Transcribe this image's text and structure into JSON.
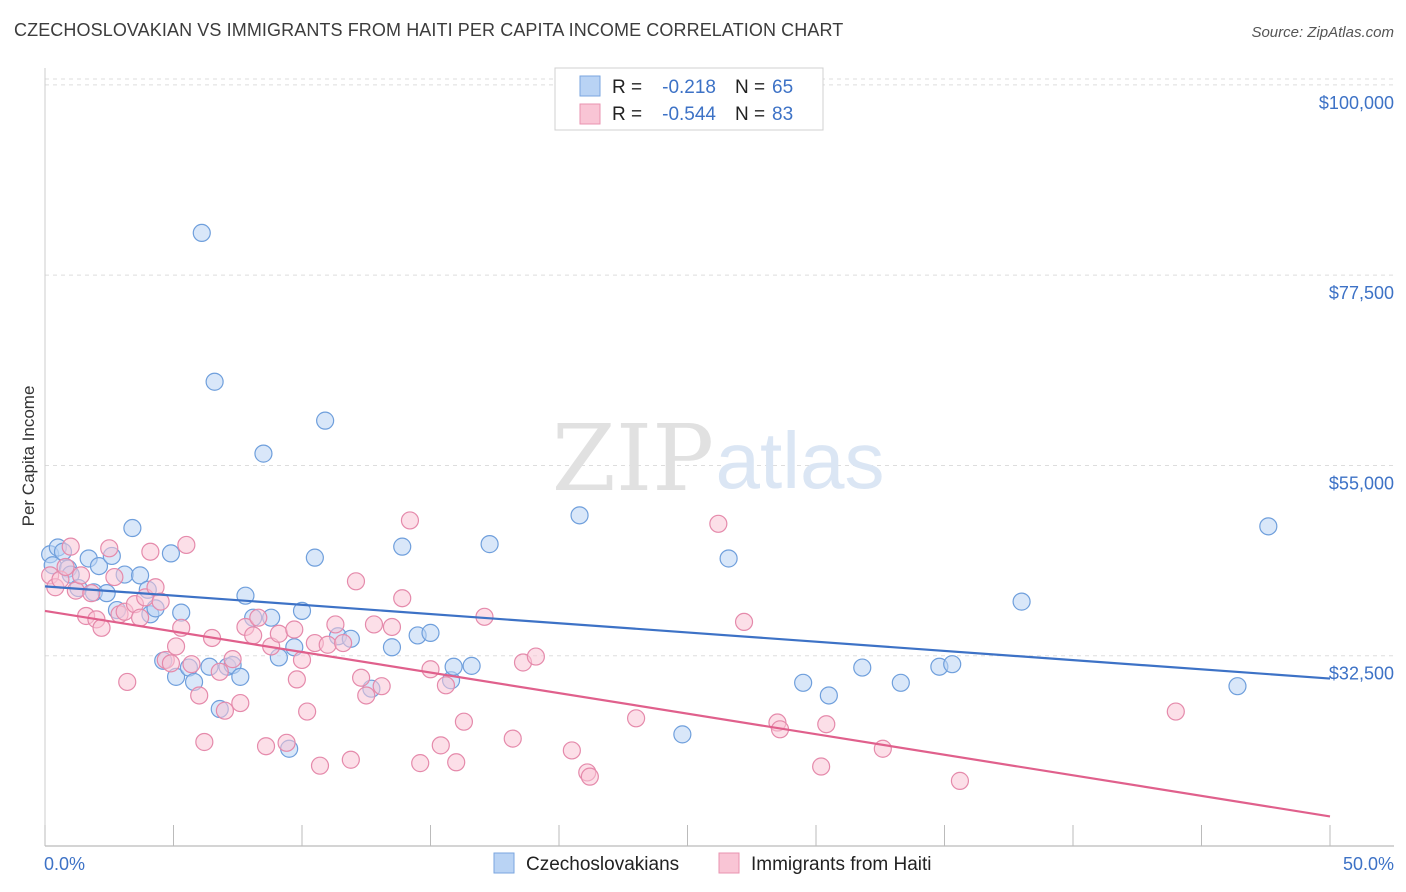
{
  "title": "CZECHOSLOVAKIAN VS IMMIGRANTS FROM HAITI PER CAPITA INCOME CORRELATION CHART",
  "source": "Source: ZipAtlas.com",
  "watermark": {
    "zip": "ZIP",
    "atlas": "atlas"
  },
  "colors": {
    "blue": "#3d72c6",
    "pink": "#e0608c",
    "blue_fill": "#b9d3f4",
    "pink_fill": "#f9c5d5"
  },
  "legend": {
    "r_label": "R =",
    "n_label": "N =",
    "rows": [
      {
        "r": "-0.218",
        "n": "65"
      },
      {
        "r": "-0.544",
        "n": "83"
      }
    ]
  },
  "chart_data": {
    "type": "scatter",
    "title": "CZECHOSLOVAKIAN VS IMMIGRANTS FROM HAITI PER CAPITA INCOME CORRELATION CHART",
    "xlabel": "",
    "ylabel": "Per Capita Income",
    "xlim": [
      0,
      50
    ],
    "ylim": [
      10000,
      102000
    ],
    "x_tick_labels": [
      "0.0%",
      "50.0%"
    ],
    "y_ticks": [
      32500,
      55000,
      77500,
      100000
    ],
    "y_tick_labels": [
      "$32,500",
      "$55,000",
      "$77,500",
      "$100,000"
    ],
    "grid": "horizontal dashed",
    "legend_position": "top-center",
    "series": [
      {
        "name": "Czechoslovakians",
        "color": "#3d72c6",
        "trend": {
          "x": [
            0,
            50
          ],
          "y": [
            40700,
            29800
          ]
        },
        "points": [
          [
            0.2,
            44500
          ],
          [
            0.3,
            43200
          ],
          [
            0.5,
            45300
          ],
          [
            0.7,
            44800
          ],
          [
            0.9,
            42800
          ],
          [
            1.0,
            42100
          ],
          [
            1.3,
            40500
          ],
          [
            1.7,
            44000
          ],
          [
            1.9,
            40000
          ],
          [
            2.1,
            43100
          ],
          [
            2.4,
            39900
          ],
          [
            2.6,
            44300
          ],
          [
            2.8,
            37900
          ],
          [
            3.1,
            42100
          ],
          [
            3.4,
            47600
          ],
          [
            3.7,
            42000
          ],
          [
            4.0,
            40300
          ],
          [
            4.1,
            37400
          ],
          [
            4.3,
            38100
          ],
          [
            4.6,
            31900
          ],
          [
            4.9,
            44600
          ],
          [
            5.1,
            30000
          ],
          [
            5.3,
            37600
          ],
          [
            5.6,
            31100
          ],
          [
            5.8,
            29400
          ],
          [
            6.1,
            82500
          ],
          [
            6.4,
            31200
          ],
          [
            6.6,
            64900
          ],
          [
            6.8,
            26200
          ],
          [
            7.1,
            31200
          ],
          [
            7.3,
            31400
          ],
          [
            7.6,
            30000
          ],
          [
            7.8,
            39600
          ],
          [
            8.1,
            37000
          ],
          [
            8.5,
            56400
          ],
          [
            8.8,
            37000
          ],
          [
            9.1,
            32300
          ],
          [
            9.5,
            21500
          ],
          [
            9.7,
            33500
          ],
          [
            10.0,
            37800
          ],
          [
            10.5,
            44100
          ],
          [
            10.9,
            60300
          ],
          [
            11.4,
            34800
          ],
          [
            11.9,
            34500
          ],
          [
            12.7,
            28600
          ],
          [
            13.5,
            33500
          ],
          [
            13.9,
            45400
          ],
          [
            14.5,
            34900
          ],
          [
            15.0,
            35200
          ],
          [
            15.8,
            29600
          ],
          [
            15.9,
            31200
          ],
          [
            16.6,
            31300
          ],
          [
            17.3,
            45700
          ],
          [
            20.8,
            49100
          ],
          [
            24.8,
            23200
          ],
          [
            26.6,
            44000
          ],
          [
            29.5,
            29300
          ],
          [
            30.5,
            27800
          ],
          [
            31.8,
            31100
          ],
          [
            33.3,
            29300
          ],
          [
            34.8,
            31200
          ],
          [
            35.3,
            31500
          ],
          [
            38.0,
            38900
          ],
          [
            46.4,
            28900
          ],
          [
            47.6,
            47800
          ]
        ]
      },
      {
        "name": "Immigrants from Haiti",
        "color": "#e0608c",
        "trend": {
          "x": [
            0,
            50
          ],
          "y": [
            37800,
            13500
          ]
        },
        "points": [
          [
            0.2,
            42000
          ],
          [
            0.4,
            40600
          ],
          [
            0.6,
            41500
          ],
          [
            0.8,
            43000
          ],
          [
            1.0,
            45400
          ],
          [
            1.2,
            40200
          ],
          [
            1.4,
            42000
          ],
          [
            1.6,
            37200
          ],
          [
            1.8,
            39900
          ],
          [
            2.0,
            36800
          ],
          [
            2.2,
            35800
          ],
          [
            2.5,
            45200
          ],
          [
            2.7,
            41800
          ],
          [
            2.9,
            37400
          ],
          [
            3.1,
            37700
          ],
          [
            3.2,
            29400
          ],
          [
            3.5,
            38600
          ],
          [
            3.7,
            37000
          ],
          [
            3.9,
            39400
          ],
          [
            4.1,
            44800
          ],
          [
            4.3,
            40600
          ],
          [
            4.5,
            38900
          ],
          [
            4.7,
            32000
          ],
          [
            4.9,
            31600
          ],
          [
            5.1,
            33600
          ],
          [
            5.3,
            35800
          ],
          [
            5.5,
            45600
          ],
          [
            5.7,
            31500
          ],
          [
            6.0,
            27800
          ],
          [
            6.2,
            22300
          ],
          [
            6.5,
            34600
          ],
          [
            6.8,
            30600
          ],
          [
            7.0,
            26000
          ],
          [
            7.3,
            32100
          ],
          [
            7.6,
            26900
          ],
          [
            7.8,
            35900
          ],
          [
            8.1,
            34900
          ],
          [
            8.3,
            37000
          ],
          [
            8.6,
            21800
          ],
          [
            8.8,
            33600
          ],
          [
            9.1,
            35100
          ],
          [
            9.4,
            22200
          ],
          [
            9.7,
            35600
          ],
          [
            9.8,
            29700
          ],
          [
            10.0,
            32000
          ],
          [
            10.2,
            25900
          ],
          [
            10.5,
            34000
          ],
          [
            10.7,
            19500
          ],
          [
            11.0,
            33800
          ],
          [
            11.3,
            36200
          ],
          [
            11.6,
            34000
          ],
          [
            11.9,
            20200
          ],
          [
            12.1,
            41300
          ],
          [
            12.3,
            29900
          ],
          [
            12.5,
            27800
          ],
          [
            12.8,
            36200
          ],
          [
            13.1,
            28900
          ],
          [
            13.5,
            35900
          ],
          [
            13.9,
            39300
          ],
          [
            14.2,
            48500
          ],
          [
            14.6,
            19800
          ],
          [
            15.0,
            30900
          ],
          [
            15.4,
            21900
          ],
          [
            15.6,
            29000
          ],
          [
            16.0,
            19900
          ],
          [
            16.3,
            24700
          ],
          [
            17.1,
            37100
          ],
          [
            18.2,
            22700
          ],
          [
            18.6,
            31700
          ],
          [
            19.1,
            32400
          ],
          [
            20.5,
            21300
          ],
          [
            21.1,
            18700
          ],
          [
            21.2,
            18200
          ],
          [
            23.0,
            25100
          ],
          [
            26.2,
            48100
          ],
          [
            27.2,
            36500
          ],
          [
            28.5,
            24600
          ],
          [
            28.6,
            23800
          ],
          [
            30.2,
            19400
          ],
          [
            30.4,
            24400
          ],
          [
            32.6,
            21500
          ],
          [
            35.6,
            17700
          ],
          [
            44.0,
            25900
          ]
        ]
      }
    ]
  },
  "bottom_legend": [
    "Czechoslovakians",
    "Immigrants from Haiti"
  ]
}
